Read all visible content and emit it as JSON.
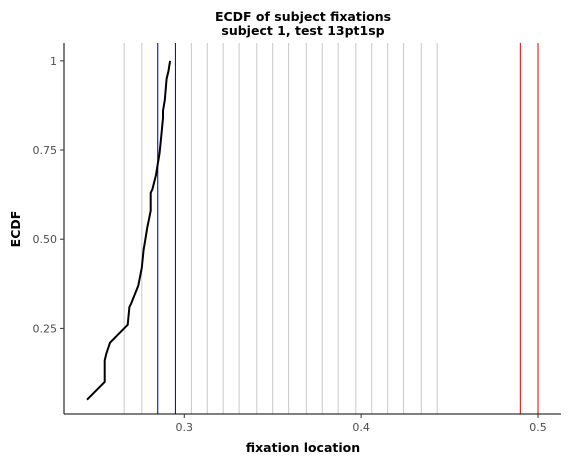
{
  "chart_data": {
    "type": "line",
    "title": "ECDF of subject fixations",
    "subtitle": "subject 1, test 13pt1sp",
    "xlabel": "fixation location",
    "ylabel": "ECDF",
    "xlim": [
      0.232,
      0.513
    ],
    "ylim": [
      0.01,
      1.05
    ],
    "xticks": [
      0.3,
      0.4,
      0.5
    ],
    "xtick_labels": [
      "0.3",
      "0.4",
      "0.5"
    ],
    "yticks": [
      0.25,
      0.5,
      0.75,
      1
    ],
    "ytick_labels": [
      "0.25",
      "0.50",
      "0.75",
      "1"
    ],
    "grid": false,
    "reference_lines": {
      "gray": {
        "color": "#c8c8c8",
        "x": [
          0.266,
          0.276,
          0.285,
          0.295,
          0.304,
          0.313,
          0.322,
          0.331,
          0.341,
          0.35,
          0.359,
          0.369,
          0.378,
          0.387,
          0.397,
          0.406,
          0.415,
          0.424,
          0.434,
          0.443
        ]
      },
      "blue": {
        "color": "#0000cc",
        "x": [
          0.285,
          0.295
        ]
      },
      "red": {
        "color": "#dd0000",
        "x": [
          0.49,
          0.5
        ]
      }
    },
    "series": [
      {
        "color": "#000000",
        "x": [
          0.245,
          0.255,
          0.255,
          0.256,
          0.258,
          0.268,
          0.269,
          0.27,
          0.274,
          0.276,
          0.277,
          0.278,
          0.279,
          0.281,
          0.281,
          0.282,
          0.283,
          0.284,
          0.285,
          0.286,
          0.287,
          0.288,
          0.288,
          0.289,
          0.29,
          0.291,
          0.292
        ],
        "y": [
          0.05,
          0.1,
          0.16,
          0.18,
          0.21,
          0.26,
          0.31,
          0.32,
          0.37,
          0.42,
          0.47,
          0.5,
          0.53,
          0.58,
          0.63,
          0.64,
          0.66,
          0.68,
          0.71,
          0.74,
          0.79,
          0.84,
          0.86,
          0.89,
          0.95,
          0.97,
          1.0
        ]
      }
    ]
  }
}
